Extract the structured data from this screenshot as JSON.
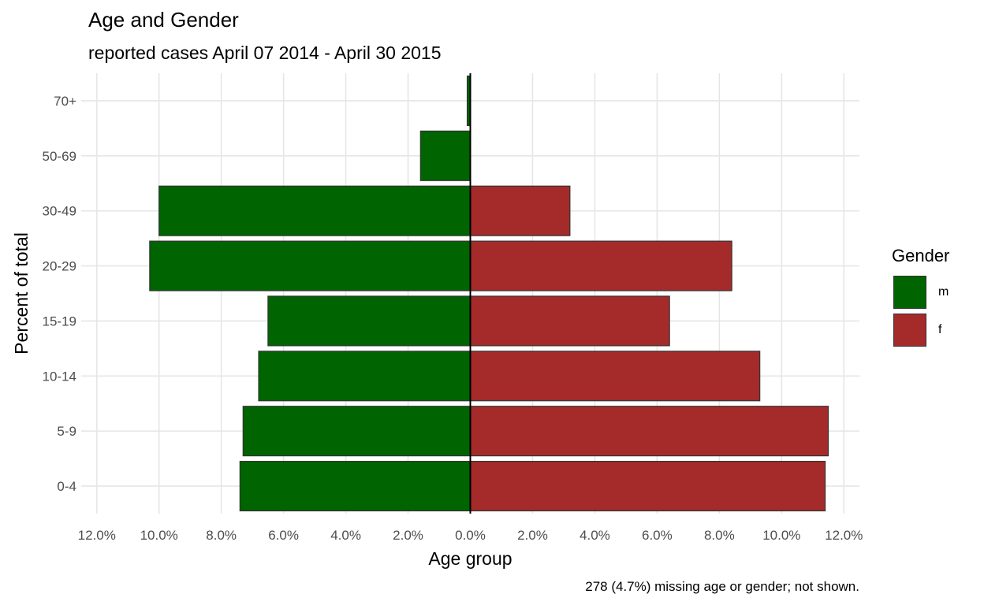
{
  "title": "Age and Gender",
  "subtitle": "reported cases April 07 2014 - April 30 2015",
  "caption": "278 (4.7%) missing age or gender; not shown.",
  "chart_data": {
    "type": "bar",
    "orientation": "horizontal",
    "xlabel": "Age group",
    "ylabel": "Percent of total",
    "categories": [
      "0-4",
      "5-9",
      "10-14",
      "15-19",
      "20-29",
      "30-49",
      "50-69",
      "70+"
    ],
    "series": [
      {
        "name": "m",
        "color": "#006400",
        "values": [
          7.4,
          7.3,
          6.8,
          6.5,
          10.3,
          10.0,
          1.6,
          0.1
        ],
        "direction": "left"
      },
      {
        "name": "f",
        "color": "#A52A2A",
        "values": [
          11.4,
          11.5,
          9.3,
          6.4,
          8.4,
          3.2,
          0.0,
          0.0
        ],
        "direction": "right"
      }
    ],
    "xlim": [
      -12.5,
      12.5
    ],
    "xticks": [
      -12,
      -10,
      -8,
      -6,
      -4,
      -2,
      0,
      2,
      4,
      6,
      8,
      10,
      12
    ],
    "xtick_labels": [
      "12.0%",
      "10.0%",
      "8.0%",
      "6.0%",
      "4.0%",
      "2.0%",
      "0.0%",
      "2.0%",
      "4.0%",
      "6.0%",
      "8.0%",
      "10.0%",
      "12.0%"
    ],
    "grid": true,
    "legend": {
      "title": "Gender",
      "position": "right"
    }
  }
}
